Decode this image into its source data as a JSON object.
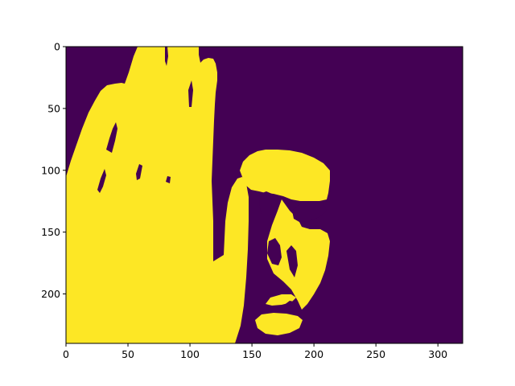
{
  "chart_data": {
    "type": "heatmap",
    "title": "",
    "xlabel": "",
    "ylabel": "",
    "image_width": 320,
    "image_height": 240,
    "xlim": [
      0,
      320
    ],
    "ylim": [
      240,
      0
    ],
    "x_ticks": [
      0,
      50,
      100,
      150,
      200,
      250,
      300
    ],
    "y_ticks": [
      0,
      50,
      100,
      150,
      200
    ],
    "x_tick_labels": [
      "0",
      "50",
      "100",
      "150",
      "200",
      "250",
      "300"
    ],
    "y_tick_labels": [
      "0",
      "50",
      "100",
      "150",
      "200"
    ],
    "colormap": "viridis",
    "value_colors": {
      "0": "#440154",
      "1": "#fde725"
    },
    "grid": false,
    "legend": "none",
    "content": "binary mask: raised hand on the left, face in the center"
  }
}
